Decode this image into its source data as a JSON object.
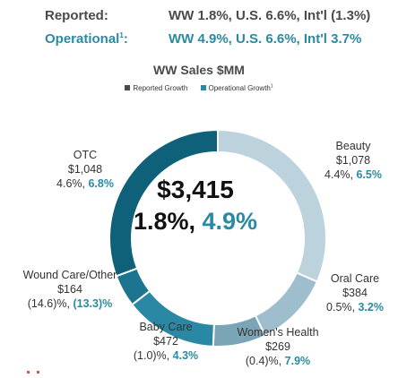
{
  "header": {
    "reported_label": "Reported:",
    "reported_value": "WW 1.8%, U.S. 6.6%, Int'l (1.3%)",
    "operational_label": "Operational",
    "operational_sup": "1",
    "operational_colon": ":",
    "operational_value": "WW 4.9%, U.S. 6.6%, Int'l 3.7%"
  },
  "chart_data": {
    "type": "donut",
    "title": "WW Sales $MM",
    "legend": [
      {
        "label": "Reported Growth",
        "color": "#4a4a4a"
      },
      {
        "label": "Operational Growth",
        "sup": "1",
        "color": "#2b8aa3"
      }
    ],
    "center": {
      "total": "$3,415",
      "reported": "1.8%,",
      "operational": "4.9%"
    },
    "slices": [
      {
        "name": "Beauty",
        "value": 1078,
        "value_label": "$1,078",
        "reported": "4.4%,",
        "operational": "6.5%",
        "color": "#bcd2dc"
      },
      {
        "name": "Oral Care",
        "value": 384,
        "value_label": "$384",
        "reported": "0.5%,",
        "operational": "3.2%",
        "color": "#9ebecd"
      },
      {
        "name": "Women's Health",
        "value": 269,
        "value_label": "$269",
        "reported": "(0.4)%,",
        "operational": "7.9%",
        "color": "#7aa5b6"
      },
      {
        "name": "Baby Care",
        "value": 472,
        "value_label": "$472",
        "reported": "(1.0)%,",
        "operational": "4.3%",
        "color": "#2a88a5"
      },
      {
        "name": "Wound Care/Other",
        "value": 164,
        "value_label": "$164",
        "reported": "(14.6)%,",
        "operational": "(13.3)%",
        "color": "#1b7590"
      },
      {
        "name": "OTC",
        "value": 1048,
        "value_label": "$1,048",
        "reported": "4.6%,",
        "operational": "6.8%",
        "color": "#0f6079"
      }
    ]
  }
}
